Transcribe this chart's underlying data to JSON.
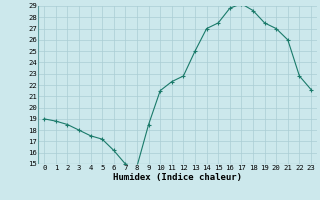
{
  "x": [
    0,
    1,
    2,
    3,
    4,
    5,
    6,
    7,
    8,
    9,
    10,
    11,
    12,
    13,
    14,
    15,
    16,
    17,
    18,
    19,
    20,
    21,
    22,
    23
  ],
  "y": [
    19.0,
    18.8,
    18.5,
    18.0,
    17.5,
    17.2,
    16.2,
    15.0,
    14.8,
    18.5,
    21.5,
    22.3,
    22.8,
    25.0,
    27.0,
    27.5,
    28.8,
    29.2,
    28.6,
    27.5,
    27.0,
    26.0,
    22.8,
    21.6
  ],
  "xlabel": "Humidex (Indice chaleur)",
  "ylim": [
    15,
    29
  ],
  "xlim": [
    -0.5,
    23.5
  ],
  "yticks": [
    15,
    16,
    17,
    18,
    19,
    20,
    21,
    22,
    23,
    24,
    25,
    26,
    27,
    28,
    29
  ],
  "xticks": [
    0,
    1,
    2,
    3,
    4,
    5,
    6,
    7,
    8,
    9,
    10,
    11,
    12,
    13,
    14,
    15,
    16,
    17,
    18,
    19,
    20,
    21,
    22,
    23
  ],
  "line_color": "#1a7a6a",
  "marker": "+",
  "markersize": 3,
  "linewidth": 0.8,
  "bg_color": "#cce8ec",
  "grid_color": "#aacdd4",
  "font_family": "monospace",
  "tick_fontsize": 5.2,
  "xlabel_fontsize": 6.5
}
